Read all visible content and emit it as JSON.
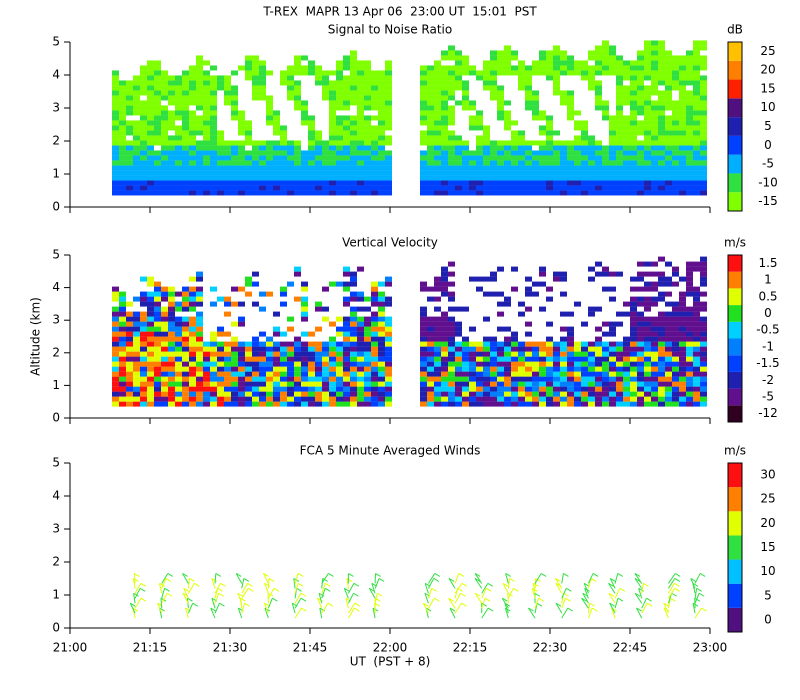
{
  "title": "T-REX  MAPR 13 Apr 06  23:00 UT  15:01  PST",
  "x_label": "UT  (PST + 8)",
  "chart_data": [
    {
      "type": "heatmap",
      "title": "Signal to Noise Ratio",
      "ylim": [
        0,
        5
      ],
      "yticks": [
        0,
        1,
        2,
        3,
        4,
        5
      ],
      "colorbar": {
        "label": "dB",
        "ticks": [
          -15,
          -10,
          -5,
          0,
          5,
          10,
          15,
          20,
          25
        ],
        "colors": [
          "#80ff00",
          "#30e040",
          "#00b0ff",
          "#0040ff",
          "#2020b0",
          "#50107f",
          "#ff2000",
          "#ff8000",
          "#ffc000"
        ]
      }
    },
    {
      "type": "heatmap",
      "title": "Vertical Velocity",
      "y_label": "Altitude (km)",
      "ylim": [
        0,
        5
      ],
      "yticks": [
        0,
        1,
        2,
        3,
        4,
        5
      ],
      "colorbar": {
        "label": "m/s",
        "ticks": [
          -12,
          -5,
          -2,
          -1.5,
          -1,
          -0.5,
          0,
          0.5,
          1,
          1.5
        ],
        "colors": [
          "#300020",
          "#60108f",
          "#2020b0",
          "#0040ff",
          "#0080ff",
          "#00d0ff",
          "#20e020",
          "#e0ff00",
          "#ff8000",
          "#ff1010"
        ]
      }
    },
    {
      "type": "barbs",
      "title": "FCA 5 Minute Averaged Winds",
      "ylim": [
        0,
        5
      ],
      "yticks": [
        0,
        1,
        2,
        3,
        4,
        5
      ],
      "xlim": [
        21,
        23
      ],
      "xticks": [
        {
          "value": 21,
          "label": "21:00"
        },
        {
          "value": 21.25,
          "label": "21:15"
        },
        {
          "value": 21.5,
          "label": "21:30"
        },
        {
          "value": 21.75,
          "label": "21:45"
        },
        {
          "value": 22,
          "label": "22:00"
        },
        {
          "value": 22.25,
          "label": "22:15"
        },
        {
          "value": 22.5,
          "label": "22:30"
        },
        {
          "value": 22.75,
          "label": "22:45"
        },
        {
          "value": 23,
          "label": "23:00"
        }
      ],
      "colorbar": {
        "label": "m/s",
        "ticks": [
          0,
          5,
          10,
          15,
          20,
          25,
          30
        ],
        "colors": [
          "#50107f",
          "#0040ff",
          "#00c0ff",
          "#30e040",
          "#e0ff00",
          "#ff8000",
          "#ff1010"
        ]
      }
    }
  ]
}
